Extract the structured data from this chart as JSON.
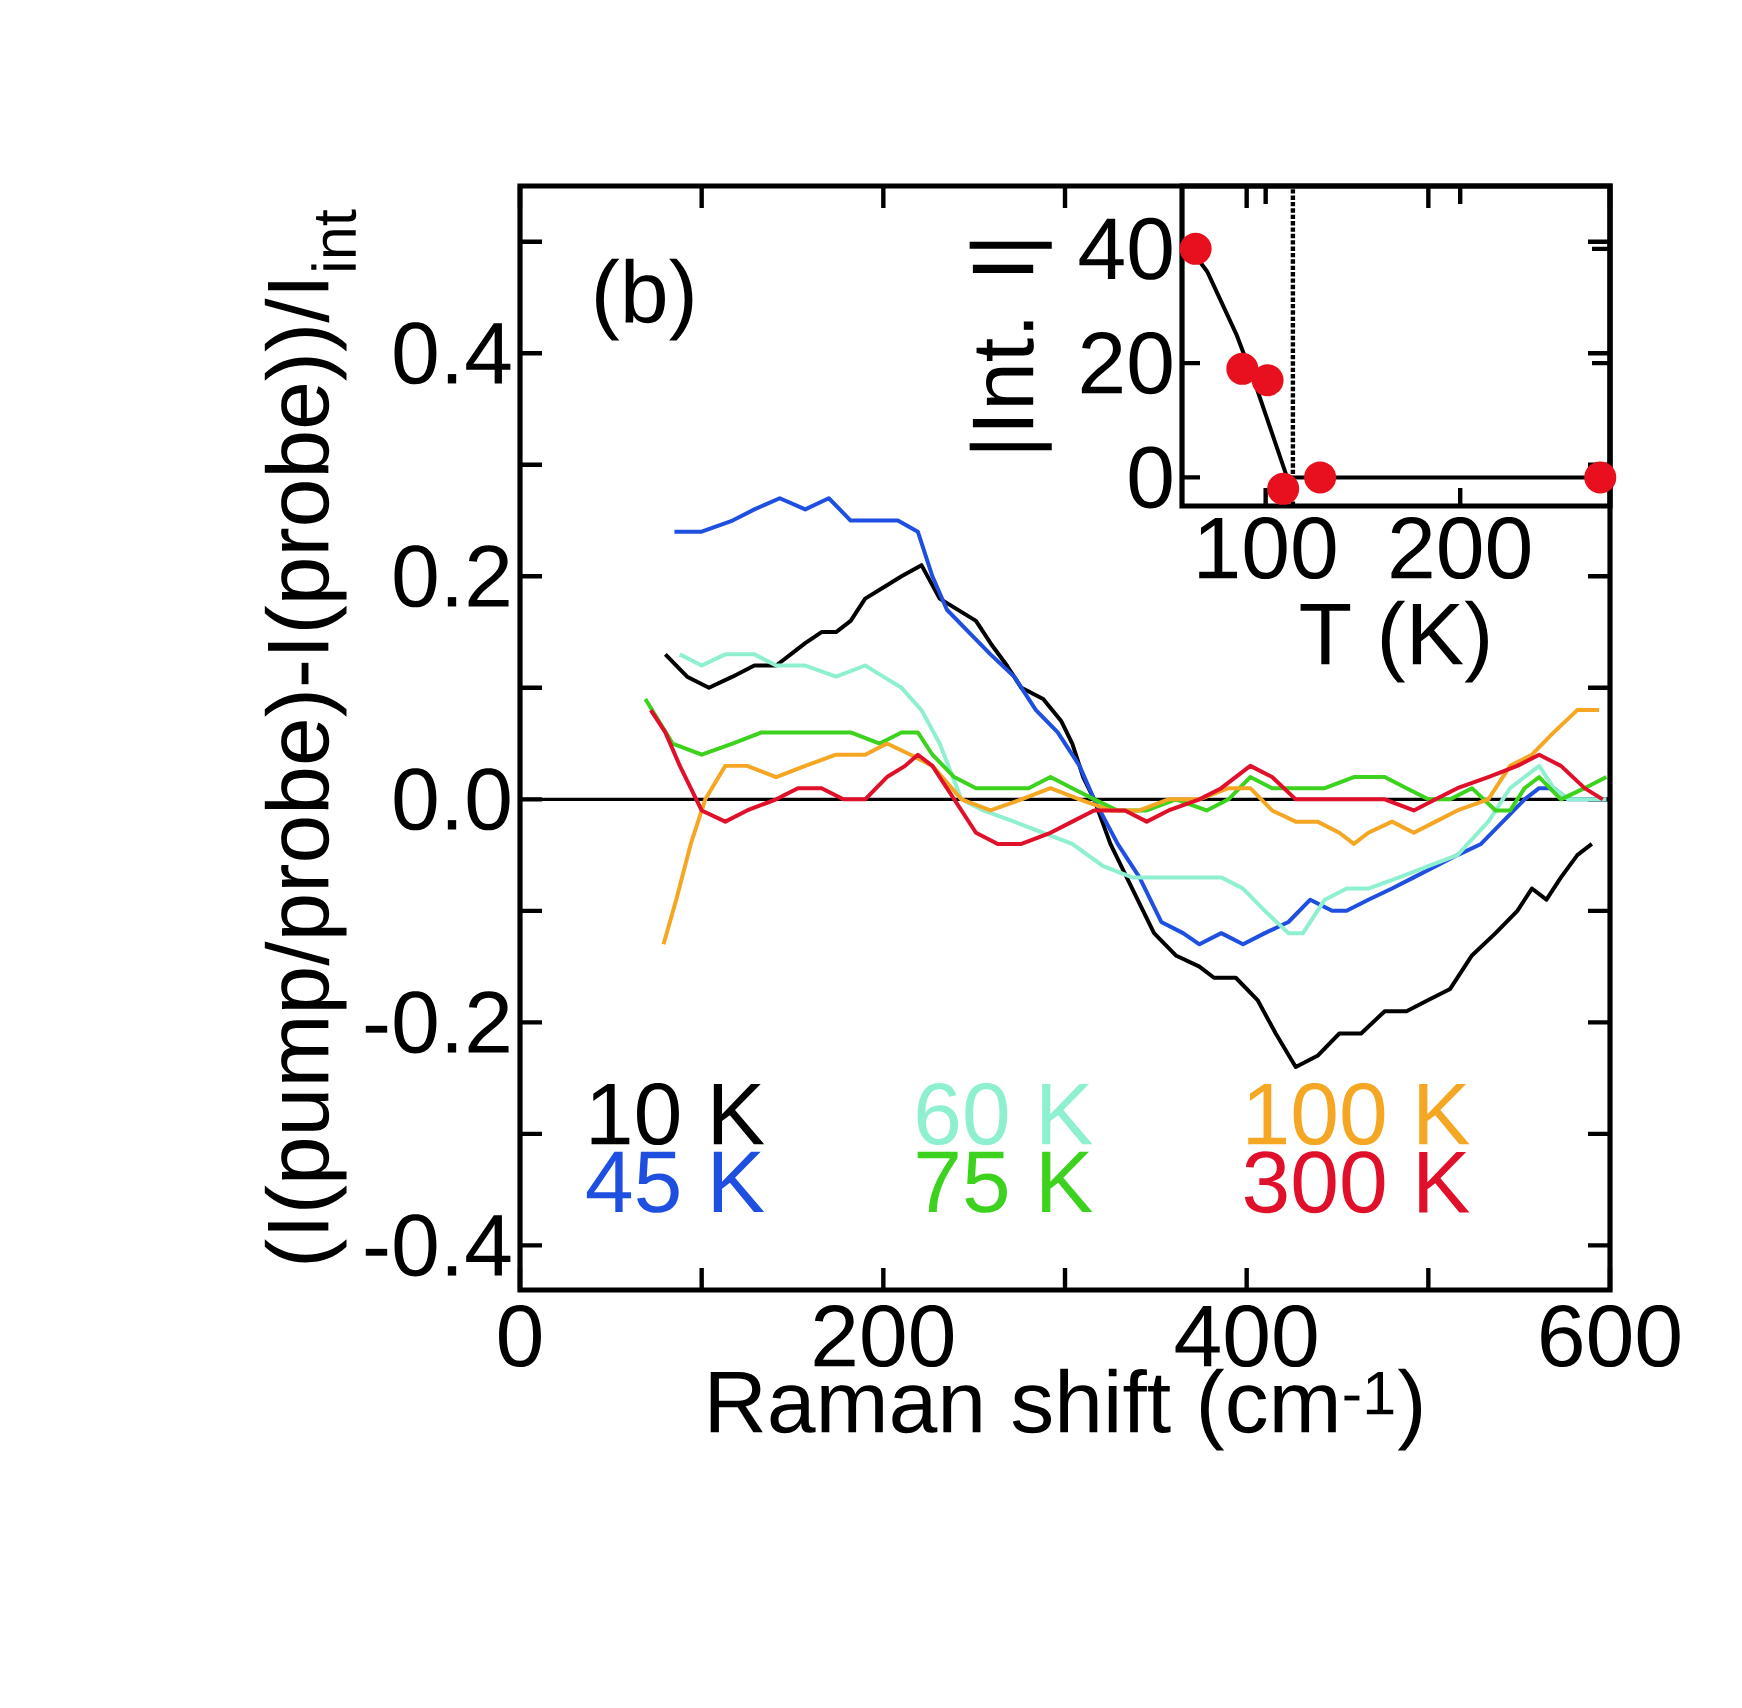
{
  "chart_data": [
    {
      "type": "line",
      "xlabel": "Raman shift (cm$^{-1}$)",
      "ylabel": "(I(pump/probe)-I(probe))/I$_{int}$",
      "annotations": [
        "(b)"
      ],
      "xlim": [
        0,
        600
      ],
      "ylim": [
        -0.44,
        0.55
      ],
      "xticks": [
        0,
        {
          "value": 100,
          "label": null
        },
        200,
        {
          "value": 300,
          "label": null
        },
        400,
        {
          "value": 500,
          "label": null
        },
        600
      ],
      "yticks": [
        {
          "value": -0.4,
          "label": "-0.4"
        },
        {
          "value": -0.3,
          "label": null
        },
        {
          "value": -0.2,
          "label": "-0.2"
        },
        {
          "value": -0.1,
          "label": null
        },
        {
          "value": 0,
          "label": "0.0"
        },
        {
          "value": 0.1,
          "label": null
        },
        {
          "value": 0.2,
          "label": "0.2"
        },
        {
          "value": 0.3,
          "label": null
        },
        {
          "value": 0.4,
          "label": "0.4"
        },
        {
          "value": 0.5,
          "label": null
        }
      ],
      "ref_lines": [
        {
          "axis": "y",
          "value": 0,
          "color": "#000000"
        }
      ],
      "legend": "bottom left",
      "series": [
        {
          "name": "10 K",
          "color": "#000000",
          "x": [
            80,
            92,
            104,
            117,
            129,
            141,
            149,
            157,
            166,
            174,
            182,
            190,
            200,
            210,
            221,
            231,
            241,
            251,
            259,
            268,
            276,
            288,
            298,
            304,
            310,
            316,
            325,
            337,
            349,
            361,
            374,
            382,
            394,
            406,
            416,
            427,
            439,
            451,
            463,
            476,
            488,
            500,
            512,
            524,
            537,
            549,
            557,
            565,
            573,
            582,
            590
          ],
          "values": [
            0.13,
            0.11,
            0.1,
            0.11,
            0.12,
            0.12,
            0.13,
            0.14,
            0.15,
            0.15,
            0.16,
            0.18,
            0.19,
            0.2,
            0.21,
            0.18,
            0.17,
            0.16,
            0.14,
            0.12,
            0.1,
            0.09,
            0.07,
            0.05,
            0.02,
            0.0,
            -0.04,
            -0.08,
            -0.12,
            -0.14,
            -0.15,
            -0.16,
            -0.16,
            -0.18,
            -0.21,
            -0.24,
            -0.23,
            -0.21,
            -0.21,
            -0.19,
            -0.19,
            -0.18,
            -0.17,
            -0.14,
            -0.12,
            -0.1,
            -0.08,
            -0.09,
            -0.07,
            -0.05,
            -0.04
          ]
        },
        {
          "name": "45 K",
          "color": "#1f4fe0",
          "x": [
            85,
            100,
            117,
            129,
            143,
            157,
            170,
            182,
            190,
            200,
            208,
            219,
            227,
            235,
            247,
            259,
            272,
            284,
            296,
            308,
            316,
            329,
            341,
            353,
            365,
            374,
            386,
            398,
            410,
            423,
            435,
            447,
            455,
            467,
            480,
            492,
            504,
            516,
            529,
            541,
            553,
            561,
            569,
            577,
            590,
            598
          ],
          "values": [
            0.24,
            0.24,
            0.25,
            0.26,
            0.27,
            0.26,
            0.27,
            0.25,
            0.25,
            0.25,
            0.25,
            0.24,
            0.2,
            0.17,
            0.15,
            0.13,
            0.11,
            0.08,
            0.06,
            0.03,
            0.0,
            -0.04,
            -0.07,
            -0.11,
            -0.12,
            -0.13,
            -0.12,
            -0.13,
            -0.12,
            -0.11,
            -0.09,
            -0.1,
            -0.1,
            -0.09,
            -0.08,
            -0.07,
            -0.06,
            -0.05,
            -0.04,
            -0.02,
            0.0,
            0.01,
            0.01,
            0.0,
            0.0,
            0.0
          ]
        },
        {
          "name": "60 K",
          "color": "#8ef0d0",
          "x": [
            88,
            100,
            113,
            129,
            141,
            157,
            174,
            190,
            200,
            210,
            221,
            231,
            243,
            255,
            272,
            288,
            304,
            321,
            337,
            353,
            369,
            386,
            398,
            410,
            423,
            431,
            443,
            455,
            467,
            484,
            500,
            516,
            533,
            545,
            553,
            561,
            569,
            577,
            590,
            598
          ],
          "values": [
            0.13,
            0.12,
            0.13,
            0.13,
            0.12,
            0.12,
            0.11,
            0.12,
            0.11,
            0.1,
            0.08,
            0.05,
            0.0,
            -0.01,
            -0.02,
            -0.03,
            -0.04,
            -0.06,
            -0.07,
            -0.07,
            -0.07,
            -0.07,
            -0.08,
            -0.1,
            -0.12,
            -0.12,
            -0.09,
            -0.08,
            -0.08,
            -0.07,
            -0.06,
            -0.05,
            -0.02,
            0.01,
            0.02,
            0.03,
            0.01,
            0.0,
            0.0,
            0.0
          ]
        },
        {
          "name": "75 K",
          "color": "#3cd21e",
          "x": [
            69,
            84,
            100,
            117,
            133,
            149,
            166,
            182,
            198,
            210,
            219,
            227,
            239,
            251,
            263,
            280,
            292,
            304,
            316,
            329,
            345,
            361,
            378,
            390,
            402,
            414,
            427,
            443,
            459,
            476,
            488,
            500,
            512,
            524,
            537,
            545,
            553,
            561,
            573,
            586,
            598
          ],
          "values": [
            0.09,
            0.05,
            0.04,
            0.05,
            0.06,
            0.06,
            0.06,
            0.06,
            0.05,
            0.06,
            0.06,
            0.04,
            0.02,
            0.01,
            0.01,
            0.01,
            0.02,
            0.01,
            0.0,
            -0.01,
            -0.01,
            0.0,
            -0.01,
            0.0,
            0.02,
            0.01,
            0.01,
            0.01,
            0.02,
            0.02,
            0.01,
            0.0,
            0.0,
            0.01,
            -0.01,
            -0.01,
            0.01,
            0.02,
            0.0,
            0.01,
            0.02
          ]
        },
        {
          "name": "100 K",
          "color": "#f5a623",
          "x": [
            79,
            86,
            94,
            102,
            113,
            125,
            141,
            157,
            174,
            190,
            202,
            215,
            227,
            243,
            259,
            276,
            292,
            308,
            325,
            341,
            357,
            374,
            390,
            402,
            414,
            427,
            439,
            451,
            459,
            467,
            480,
            492,
            504,
            516,
            533,
            545,
            557,
            569,
            582,
            594
          ],
          "values": [
            -0.13,
            -0.09,
            -0.04,
            0.0,
            0.03,
            0.03,
            0.02,
            0.03,
            0.04,
            0.04,
            0.05,
            0.04,
            0.03,
            0.0,
            -0.01,
            0.0,
            0.01,
            0.0,
            -0.01,
            -0.01,
            0.0,
            0.0,
            0.01,
            0.01,
            -0.01,
            -0.02,
            -0.02,
            -0.03,
            -0.04,
            -0.03,
            -0.02,
            -0.03,
            -0.02,
            -0.01,
            0.0,
            0.03,
            0.04,
            0.06,
            0.08,
            0.08
          ]
        },
        {
          "name": "300 K",
          "color": "#e0102a",
          "x": [
            72,
            80,
            88,
            100,
            113,
            125,
            141,
            153,
            166,
            178,
            190,
            202,
            212,
            219,
            227,
            239,
            251,
            263,
            276,
            292,
            304,
            316,
            333,
            345,
            357,
            374,
            386,
            402,
            414,
            427,
            443,
            459,
            476,
            492,
            504,
            516,
            533,
            549,
            561,
            573,
            586,
            596
          ],
          "values": [
            0.08,
            0.06,
            0.03,
            -0.01,
            -0.02,
            -0.01,
            0.0,
            0.01,
            0.01,
            0.0,
            0.0,
            0.02,
            0.03,
            0.04,
            0.03,
            0.0,
            -0.03,
            -0.04,
            -0.04,
            -0.03,
            -0.02,
            -0.01,
            -0.01,
            -0.02,
            -0.01,
            0.0,
            0.01,
            0.03,
            0.02,
            0.0,
            0.0,
            0.0,
            0.0,
            -0.01,
            0.0,
            0.01,
            0.02,
            0.03,
            0.04,
            0.03,
            0.01,
            0.0
          ]
        }
      ]
    },
    {
      "type": "scatter",
      "xlabel": "T (K)",
      "ylabel": "|Int. I|",
      "xlim": [
        57,
        277
      ],
      "ylim": [
        -5,
        51
      ],
      "xticks": [
        100,
        200
      ],
      "yticks": [
        0,
        20,
        40
      ],
      "ref_lines": [
        {
          "axis": "x",
          "value": 114,
          "color": "#000000",
          "line_style": "dotted"
        }
      ],
      "series": [
        {
          "type": "line",
          "color": "#000000",
          "marker": "none",
          "x": [
            57,
            70,
            85,
            95,
            105,
            111,
            277
          ],
          "values": [
            42,
            36,
            25,
            16,
            6,
            0,
            0
          ]
        },
        {
          "type": "scatter",
          "color": "#e8101e",
          "marker": "circle",
          "x": [
            64,
            88,
            101,
            109,
            128,
            272
          ],
          "values": [
            40,
            19,
            17,
            -2,
            0,
            0
          ]
        }
      ]
    }
  ]
}
